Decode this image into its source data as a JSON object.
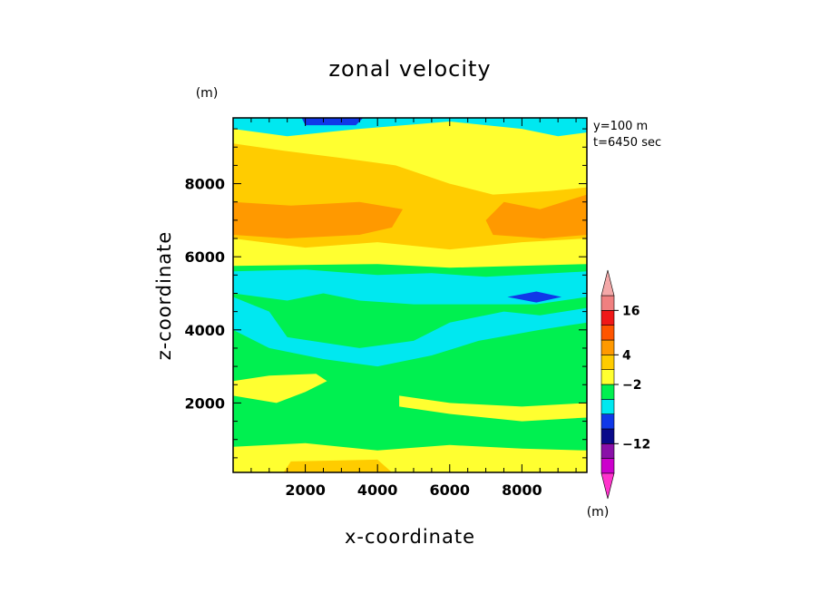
{
  "chart_data": {
    "type": "heatmap",
    "title": "zonal velocity",
    "xlabel": "x-coordinate",
    "ylabel": "z-coordinate",
    "y_unit": "(m)",
    "colorbar_unit": "(m)",
    "annotations": [
      "y=100 m",
      "t=6450 sec"
    ],
    "xlim": [
      0,
      9800
    ],
    "ylim": [
      100,
      9800
    ],
    "x_ticks": [
      2000,
      4000,
      6000,
      8000
    ],
    "y_ticks": [
      2000,
      4000,
      6000,
      8000
    ],
    "colorbar": {
      "colors": [
        "#cc00cc",
        "#8a10a8",
        "#0a0a8a",
        "#1038e8",
        "#00e8f0",
        "#00f050",
        "#ffff30",
        "#ffcc00",
        "#ff9900",
        "#ff5500",
        "#f01818",
        "#f08080"
      ],
      "tick_labels": [
        "16",
        "4",
        "-2",
        "-12"
      ],
      "tick_after_index": [
        10,
        7,
        5,
        1
      ],
      "extend_both": true
    },
    "regions": [
      {
        "level": "-2",
        "color": "#00e8f0",
        "polygon": [
          [
            0,
            9800
          ],
          [
            9800,
            9800
          ],
          [
            9800,
            9400
          ],
          [
            9000,
            9300
          ],
          [
            8000,
            9500
          ],
          [
            6000,
            9700
          ],
          [
            3500,
            9500
          ],
          [
            1500,
            9300
          ],
          [
            0,
            9500
          ]
        ]
      },
      {
        "level": "-12",
        "color": "#1038e8",
        "polygon": [
          [
            1900,
            9800
          ],
          [
            3600,
            9800
          ],
          [
            3400,
            9600
          ],
          [
            2000,
            9600
          ]
        ]
      },
      {
        "level": "4",
        "color": "#ffcc00",
        "polygon": [
          [
            0,
            9100
          ],
          [
            1400,
            8900
          ],
          [
            3000,
            8700
          ],
          [
            4500,
            8500
          ],
          [
            6000,
            8000
          ],
          [
            7200,
            7700
          ],
          [
            8800,
            7800
          ],
          [
            9800,
            7900
          ],
          [
            9800,
            6500
          ],
          [
            8000,
            6400
          ],
          [
            6000,
            6200
          ],
          [
            4000,
            6400
          ],
          [
            2000,
            6250
          ],
          [
            0,
            6500
          ]
        ]
      },
      {
        "level": "8",
        "color": "#ff9900",
        "polygon": [
          [
            0,
            7500
          ],
          [
            1600,
            7400
          ],
          [
            3500,
            7500
          ],
          [
            4700,
            7300
          ],
          [
            4400,
            6800
          ],
          [
            3500,
            6600
          ],
          [
            1500,
            6500
          ],
          [
            0,
            6600
          ]
        ]
      },
      {
        "level": "8",
        "color": "#ff9900",
        "polygon": [
          [
            7500,
            7500
          ],
          [
            8500,
            7300
          ],
          [
            9800,
            7700
          ],
          [
            9800,
            6600
          ],
          [
            8600,
            6500
          ],
          [
            7200,
            6600
          ],
          [
            7000,
            7000
          ]
        ]
      },
      {
        "level": "-2",
        "color": "#00e8f0",
        "polygon": [
          [
            0,
            5600
          ],
          [
            2000,
            5650
          ],
          [
            4000,
            5500
          ],
          [
            5500,
            5550
          ],
          [
            7000,
            5450
          ],
          [
            9800,
            5600
          ],
          [
            9800,
            4900
          ],
          [
            8400,
            4700
          ],
          [
            7000,
            4700
          ],
          [
            5000,
            4700
          ],
          [
            3500,
            4800
          ],
          [
            2500,
            5000
          ],
          [
            1500,
            4800
          ],
          [
            0,
            5000
          ]
        ]
      },
      {
        "level": "-2",
        "color": "#00e8f0",
        "polygon": [
          [
            0,
            4900
          ],
          [
            1000,
            4500
          ],
          [
            1500,
            3800
          ],
          [
            3500,
            3500
          ],
          [
            5000,
            3700
          ],
          [
            6000,
            4200
          ],
          [
            7500,
            4500
          ],
          [
            8500,
            4400
          ],
          [
            9800,
            4600
          ],
          [
            9800,
            4200
          ],
          [
            8500,
            4000
          ],
          [
            6800,
            3700
          ],
          [
            5500,
            3300
          ],
          [
            4000,
            3000
          ],
          [
            2500,
            3200
          ],
          [
            1000,
            3500
          ],
          [
            0,
            4000
          ]
        ]
      },
      {
        "level": "-12",
        "color": "#1038e8",
        "polygon": [
          [
            7600,
            4900
          ],
          [
            8400,
            5050
          ],
          [
            9100,
            4900
          ],
          [
            8400,
            4750
          ]
        ]
      },
      {
        "level": "4",
        "color": "#ffff30",
        "polygon": [
          [
            0,
            2600
          ],
          [
            1000,
            2750
          ],
          [
            2300,
            2800
          ],
          [
            2600,
            2600
          ],
          [
            2000,
            2300
          ],
          [
            1200,
            2000
          ],
          [
            0,
            2200
          ]
        ]
      },
      {
        "level": "4",
        "color": "#ffff30",
        "polygon": [
          [
            4600,
            2200
          ],
          [
            6000,
            2000
          ],
          [
            8000,
            1900
          ],
          [
            9800,
            2000
          ],
          [
            9800,
            1600
          ],
          [
            8000,
            1500
          ],
          [
            6000,
            1700
          ],
          [
            4600,
            1900
          ]
        ]
      },
      {
        "level": "4",
        "color": "#ffff30",
        "polygon": [
          [
            0,
            800
          ],
          [
            2000,
            900
          ],
          [
            4000,
            700
          ],
          [
            6000,
            850
          ],
          [
            8000,
            750
          ],
          [
            9800,
            700
          ],
          [
            9800,
            100
          ],
          [
            0,
            100
          ]
        ]
      },
      {
        "level": "8",
        "color": "#ffcc00",
        "polygon": [
          [
            1600,
            400
          ],
          [
            4000,
            450
          ],
          [
            4400,
            100
          ],
          [
            1400,
            100
          ]
        ]
      }
    ]
  }
}
